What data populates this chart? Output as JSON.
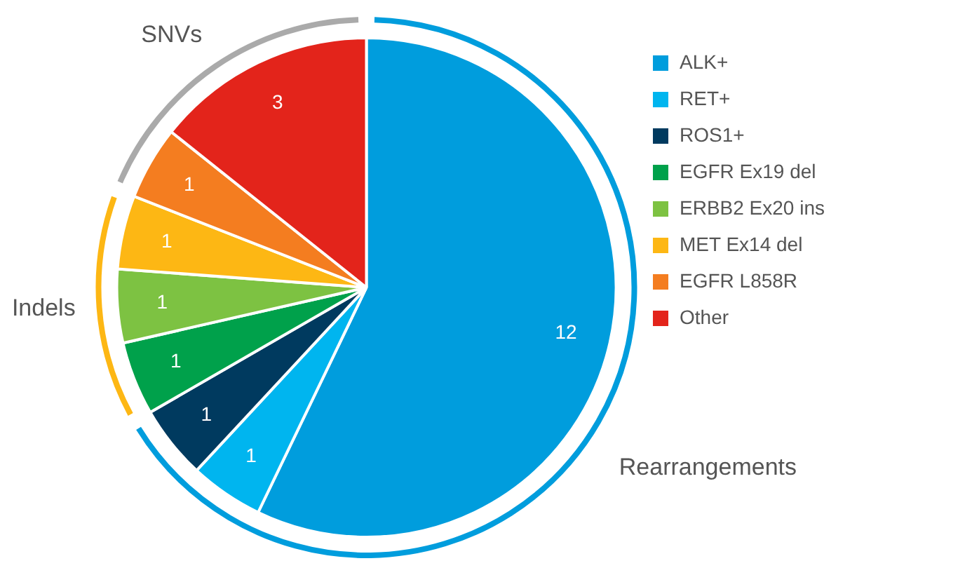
{
  "chart_data": {
    "type": "pie",
    "categories": [
      "ALK+",
      "RET+",
      "ROS1+",
      "EGFR Ex19 del",
      "ERBB2 Ex20 ins",
      "MET Ex14 del",
      "EGFR L858R",
      "Other"
    ],
    "values": [
      12,
      1,
      1,
      1,
      1,
      1,
      1,
      3
    ],
    "colors": [
      "#009ddd",
      "#00b5ef",
      "#003a5f",
      "#00a14b",
      "#7dc242",
      "#fdb714",
      "#f47d20",
      "#e3241b"
    ],
    "data_labels": true,
    "legend": "top right",
    "annotations": [
      "Rearrangements",
      "Indels",
      "SNVs"
    ]
  }
}
